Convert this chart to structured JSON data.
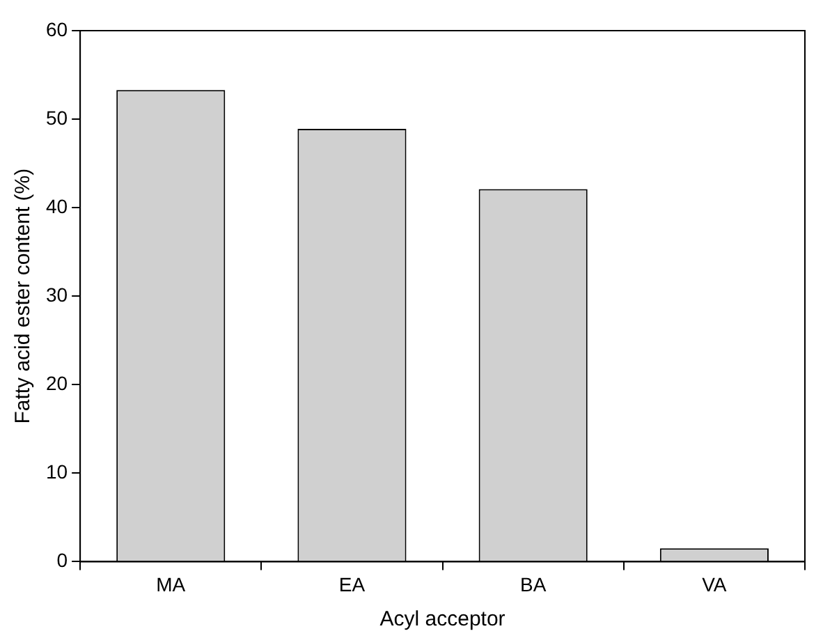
{
  "chart_data": {
    "type": "bar",
    "xlabel": "Acyl acceptor",
    "ylabel": "Fatty acid ester content (%)",
    "categories": [
      "MA",
      "EA",
      "BA",
      "VA"
    ],
    "values": [
      53.3,
      48.9,
      42.1,
      1.5
    ],
    "color": "#d0d0d0",
    "ylim": [
      0,
      60
    ],
    "yticks": [
      0,
      10,
      20,
      30,
      40,
      50,
      60
    ],
    "grid": false,
    "legend": false
  }
}
